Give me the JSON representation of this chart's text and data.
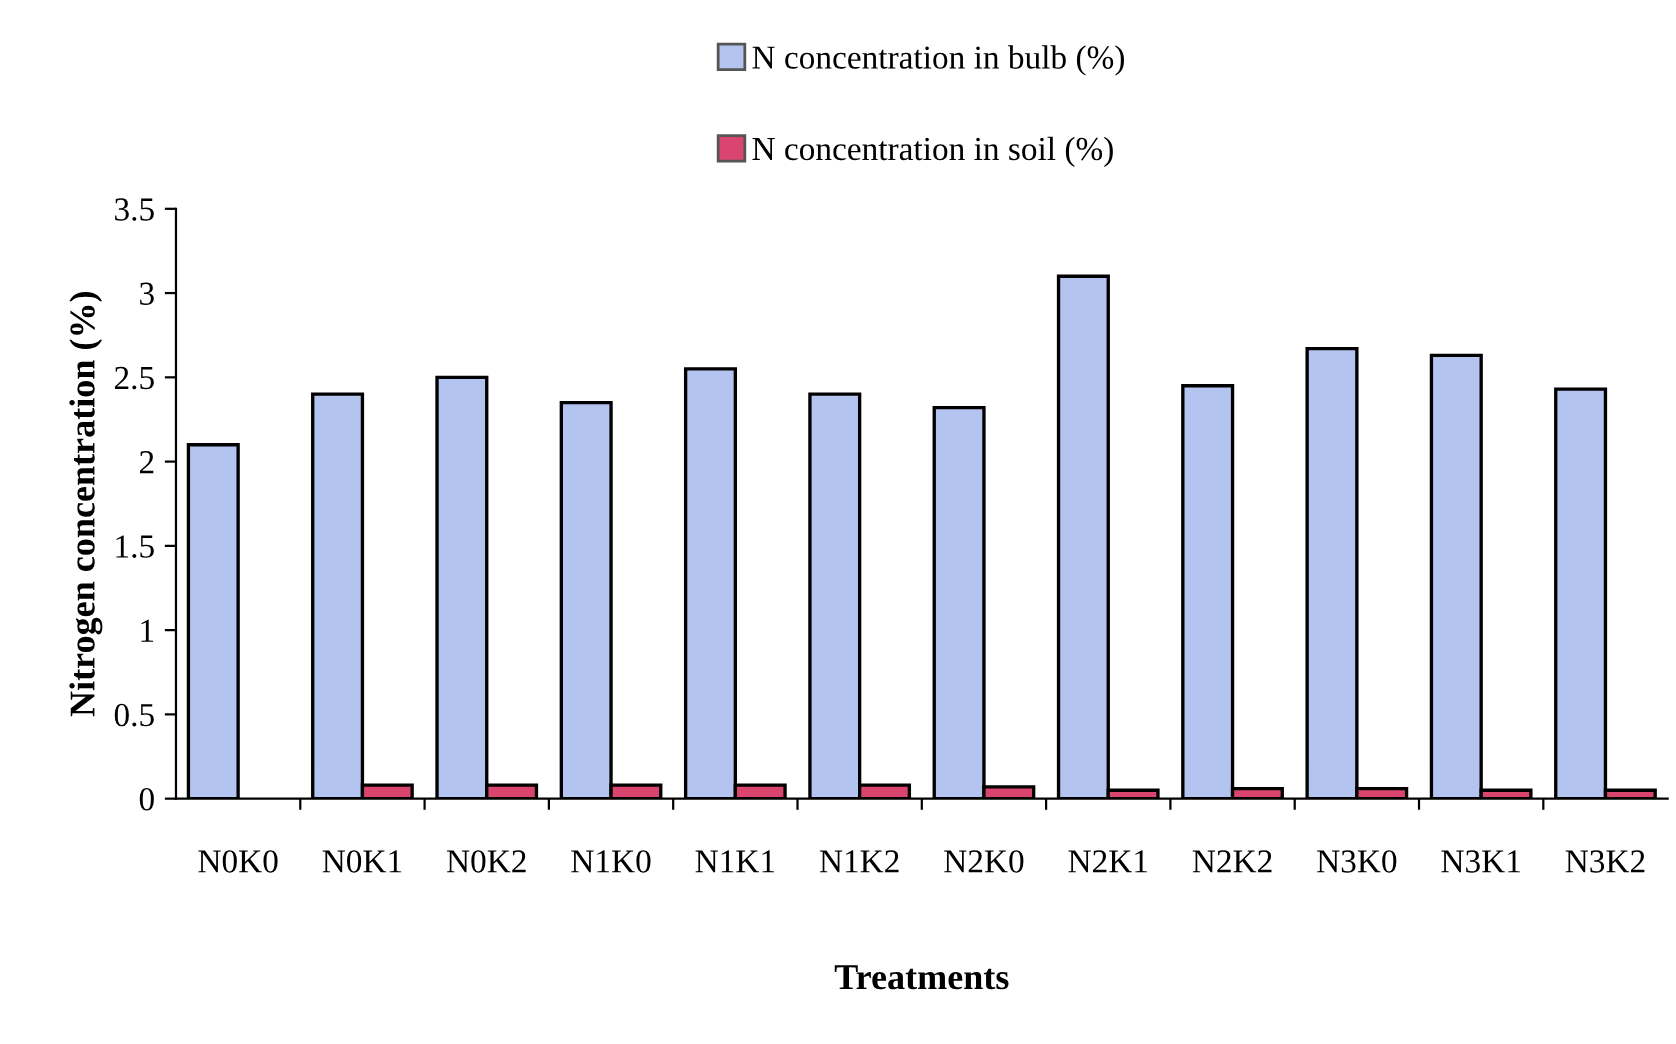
{
  "chart_data": {
    "type": "bar",
    "xlabel": "Treatments",
    "ylabel": "Nitrogen concentration (%)",
    "categories": [
      "N0K0",
      "N0K1",
      "N0K2",
      "N1K0",
      "N1K1",
      "N1K2",
      "N2K0",
      "N2K1",
      "N2K2",
      "N3K0",
      "N3K1",
      "N3K2"
    ],
    "series": [
      {
        "name": "N concentration in bulb (%)",
        "color": "#b4c4f0",
        "values": [
          2.1,
          2.4,
          2.5,
          2.35,
          2.55,
          2.4,
          2.32,
          3.1,
          2.45,
          2.67,
          2.63,
          2.43
        ]
      },
      {
        "name": "N concentration in soil (%)",
        "color": "#d9456e",
        "values": [
          null,
          0.08,
          0.08,
          0.08,
          0.08,
          0.08,
          0.07,
          0.05,
          0.06,
          0.06,
          0.05,
          0.05
        ]
      }
    ],
    "ylim": [
      0,
      3.5
    ],
    "yticks": [
      0,
      0.5,
      1,
      1.5,
      2,
      2.5,
      3,
      3.5
    ],
    "grid": false,
    "legend": "top"
  }
}
